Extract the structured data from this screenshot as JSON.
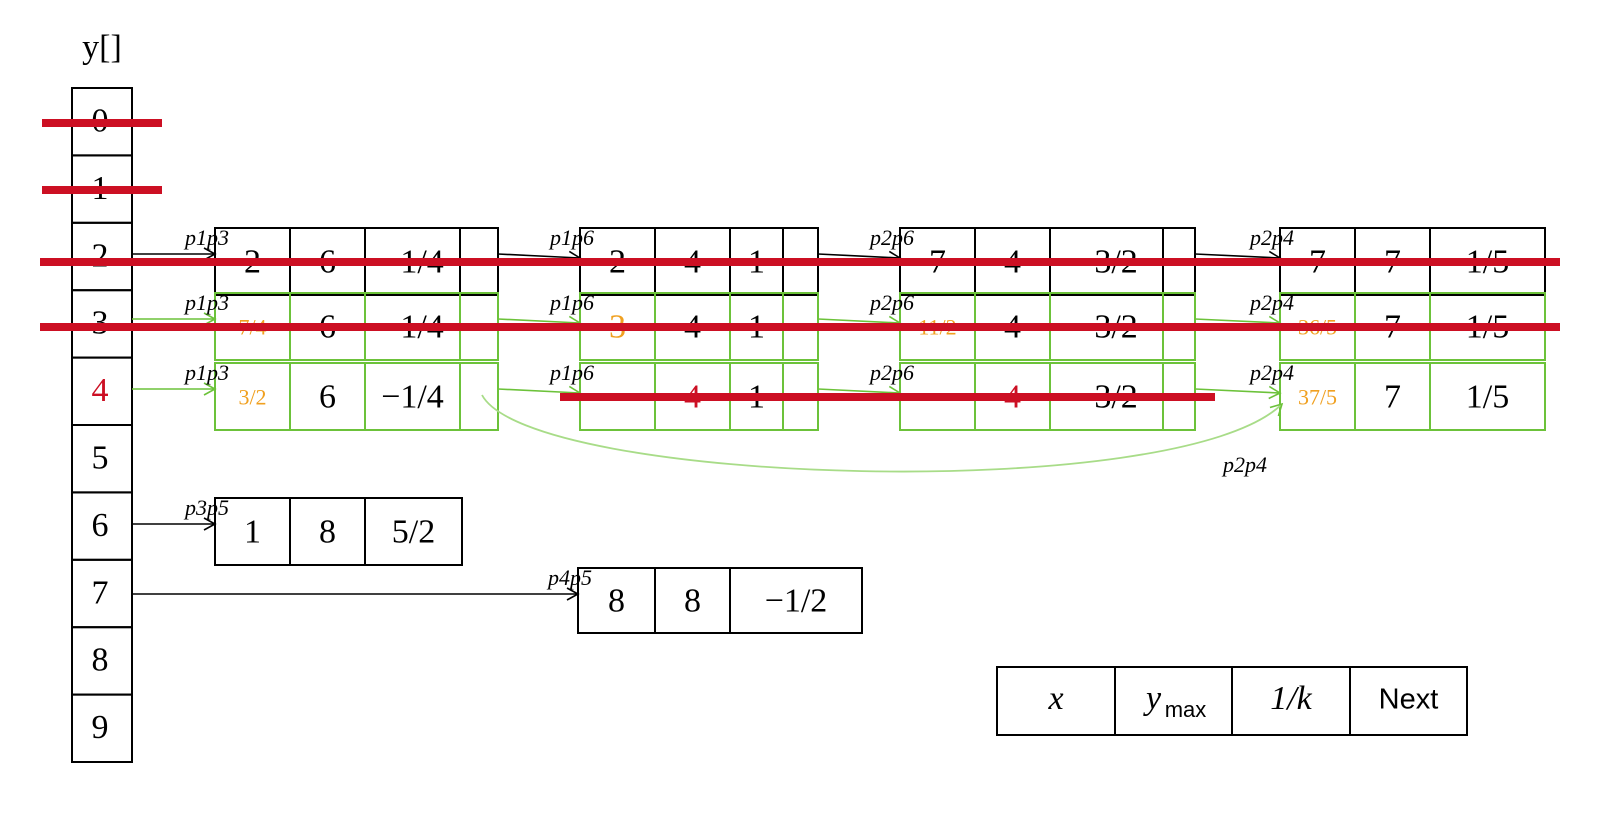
{
  "array": {
    "label": "y[]",
    "cells": [
      "0",
      "1",
      "2",
      "3",
      "4",
      "5",
      "6",
      "7",
      "8",
      "9"
    ]
  },
  "lists": [
    {
      "nodes": [
        {
          "edge": "p1p3",
          "cells": [
            "2",
            "6",
            "−1/4"
          ]
        },
        {
          "edge": "p1p6",
          "cells": [
            "2",
            "4",
            "1"
          ]
        },
        {
          "edge": "p2p6",
          "cells": [
            "7",
            "4",
            "−3/2"
          ]
        },
        {
          "edge": "p2p4",
          "cells": [
            "7",
            "7",
            "1/5"
          ]
        }
      ]
    },
    {
      "nodes": [
        {
          "edge": "p1p3",
          "cells": [
            "7/4",
            "6",
            "−1/4"
          ]
        },
        {
          "edge": "p1p6",
          "cells": [
            "3",
            "4",
            "1"
          ]
        },
        {
          "edge": "p2p6",
          "cells": [
            "11/2",
            "4",
            "−3/2"
          ]
        },
        {
          "edge": "p2p4",
          "cells": [
            "36/5",
            "7",
            "1/5"
          ]
        }
      ]
    },
    {
      "nodes": [
        {
          "edge": "p1p3",
          "cells": [
            "3/2",
            "6",
            "−1/4"
          ]
        },
        {
          "edge": "p1p6",
          "cells": [
            null,
            "4",
            "1"
          ]
        },
        {
          "edge": "p2p6",
          "cells": [
            null,
            "4",
            "−3/2"
          ]
        },
        {
          "edge": "p2p4",
          "cells": [
            "37/5",
            "7",
            "1/5"
          ]
        }
      ],
      "jump": "p2p4"
    },
    {
      "nodes": [
        {
          "edge": "p3p5",
          "cells": [
            "1",
            "8",
            "5/2"
          ]
        }
      ]
    },
    {
      "nodes": [
        {
          "edge": "p4p5",
          "cells": [
            "8",
            "8",
            "−1/2"
          ]
        }
      ]
    }
  ],
  "legend": [
    {
      "text": "x"
    },
    {
      "text": "y",
      "sub": "max"
    },
    {
      "text": "1/k"
    },
    {
      "text": "Next"
    }
  ]
}
